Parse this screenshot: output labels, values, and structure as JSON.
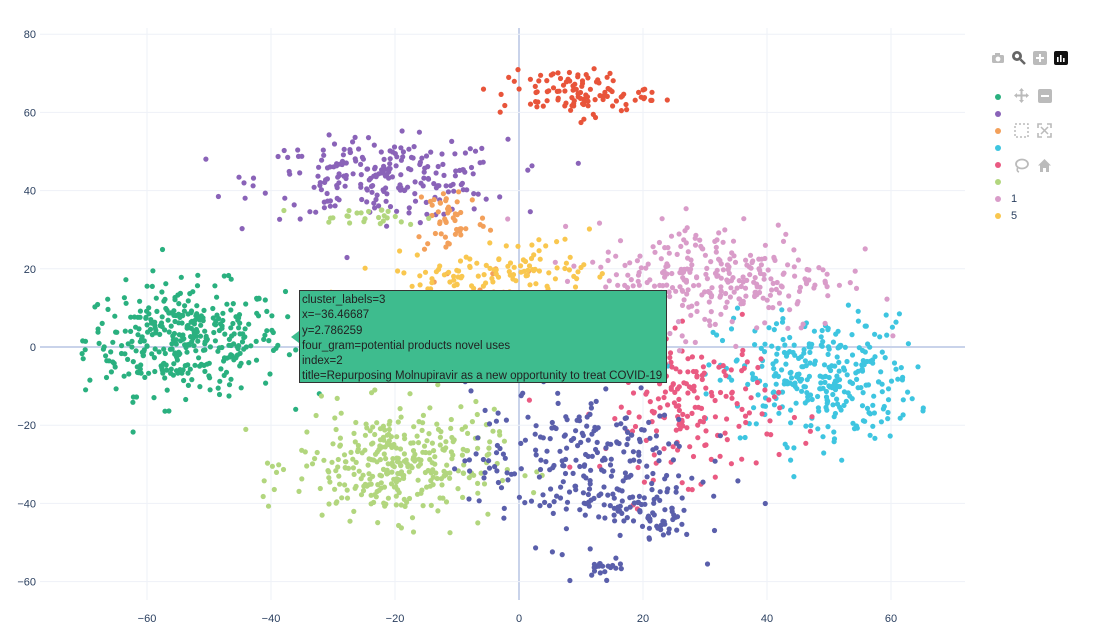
{
  "chart_data": {
    "type": "scatter",
    "title": "",
    "xlabel": "",
    "ylabel": "",
    "xlim": [
      -76,
      71
    ],
    "ylim": [
      -65,
      81
    ],
    "x_ticks": [
      "−60",
      "−40",
      "−20",
      "0",
      "20",
      "40",
      "60"
    ],
    "x_tick_values": [
      -60,
      -40,
      -20,
      0,
      20,
      40,
      60
    ],
    "y_ticks": [
      "80",
      "60",
      "40",
      "20",
      "0",
      "−20",
      "−40",
      "−60"
    ],
    "y_tick_values": [
      80,
      60,
      40,
      20,
      0,
      -20,
      -40,
      -60
    ],
    "grid": true,
    "legend_position": "right",
    "series": [
      {
        "color": "#2ab07f",
        "clusters": [
          {
            "cx": -54,
            "cy": 2,
            "sx": 8,
            "sy": 7,
            "n": 380
          }
        ]
      },
      {
        "color": "#8a63b8",
        "clusters": [
          {
            "cx": -22,
            "cy": 43,
            "sx": 10,
            "sy": 5,
            "n": 230
          }
        ]
      },
      {
        "color": "#f3a05a",
        "clusters": [
          {
            "cx": -11,
            "cy": 33,
            "sx": 3,
            "sy": 5,
            "n": 50
          },
          {
            "cx": -3,
            "cy": 5,
            "sx": 8,
            "sy": 8,
            "n": 60
          }
        ]
      },
      {
        "color": "#3ec5e0",
        "clusters": [
          {
            "cx": 48,
            "cy": -8,
            "sx": 8,
            "sy": 8,
            "n": 320
          }
        ]
      },
      {
        "color": "#ea5a82",
        "clusters": [
          {
            "cx": 28,
            "cy": -15,
            "sx": 7,
            "sy": 9,
            "n": 190
          }
        ]
      },
      {
        "color": "#b2d67e",
        "clusters": [
          {
            "cx": -20,
            "cy": -30,
            "sx": 8,
            "sy": 7,
            "n": 340
          },
          {
            "cx": -25,
            "cy": 33,
            "sx": 5,
            "sy": 1.2,
            "n": 25
          }
        ]
      },
      {
        "color": "#d99cc9",
        "name": "1",
        "clusters": [
          {
            "cx": 32,
            "cy": 18,
            "sx": 10,
            "sy": 7,
            "n": 300
          }
        ]
      },
      {
        "color": "#f9c74f",
        "name": "5",
        "clusters": [
          {
            "cx": -8,
            "cy": 18,
            "sx": 8,
            "sy": 3,
            "n": 90
          },
          {
            "cx": 5,
            "cy": 22,
            "sx": 4,
            "sy": 3,
            "n": 30
          }
        ]
      },
      {
        "color": "#e8543a",
        "clusters": [
          {
            "cx": 9,
            "cy": 65,
            "sx": 6,
            "sy": 3,
            "n": 110
          }
        ]
      },
      {
        "color": "#5a5fab",
        "clusters": [
          {
            "cx": 10,
            "cy": -30,
            "sx": 9,
            "sy": 10,
            "n": 260
          },
          {
            "cx": 22,
            "cy": -43,
            "sx": 3,
            "sy": 3,
            "n": 50
          },
          {
            "cx": 14,
            "cy": -56,
            "sx": 1.5,
            "sy": 1.2,
            "n": 20
          }
        ]
      }
    ]
  },
  "legend": [
    {
      "label": "",
      "color": "#2ab07f"
    },
    {
      "label": "",
      "color": "#8a63b8"
    },
    {
      "label": "",
      "color": "#f3a05a"
    },
    {
      "label": "",
      "color": "#3ec5e0"
    },
    {
      "label": "",
      "color": "#ea5a82"
    },
    {
      "label": "",
      "color": "#b2d67e"
    },
    {
      "label": "1",
      "color": "#d99cc9"
    },
    {
      "label": "5",
      "color": "#f9c74f"
    }
  ],
  "tooltip": {
    "line1": "cluster_labels=3",
    "line2": "x=−36.46687",
    "line3": "y=2.786259",
    "line4": "four_gram=potential products novel uses",
    "line5": "index=2",
    "line6": "title=Repurposing Molnupiravir as a new opportunity to treat COVID-19",
    "color": "#3ebc8e"
  },
  "modebar": {
    "icons": [
      "camera-icon",
      "zoom-icon",
      "zoom-in-icon",
      "plotly-logo-icon",
      "pan-icon",
      "zoom-out-icon",
      "box-select-icon",
      "autoscale-icon",
      "lasso-icon",
      "home-icon"
    ]
  }
}
